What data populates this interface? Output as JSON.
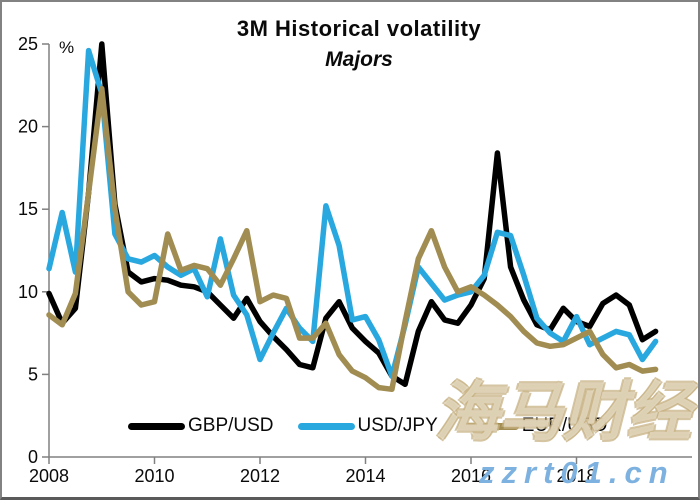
{
  "chart_data": {
    "type": "line",
    "title": "3M Historical volatility",
    "subtitle": "Majors",
    "unit_label": "%",
    "xlabel": "",
    "ylabel": "%",
    "xlim": [
      2008,
      2020.2
    ],
    "ylim": [
      0,
      25
    ],
    "grid": false,
    "legend_position": "bottom",
    "x_ticks": [
      2008,
      2010,
      2012,
      2014,
      2016,
      2018
    ],
    "y_ticks": [
      0,
      5,
      10,
      15,
      20,
      25
    ],
    "axis_color": "#808080",
    "x": [
      2008.0,
      2008.25,
      2008.5,
      2008.75,
      2009.0,
      2009.25,
      2009.5,
      2009.75,
      2010.0,
      2010.25,
      2010.5,
      2010.75,
      2011.0,
      2011.25,
      2011.5,
      2011.75,
      2012.0,
      2012.25,
      2012.5,
      2012.75,
      2013.0,
      2013.25,
      2013.5,
      2013.75,
      2014.0,
      2014.25,
      2014.5,
      2014.75,
      2015.0,
      2015.25,
      2015.5,
      2015.75,
      2016.0,
      2016.25,
      2016.5,
      2016.75,
      2017.0,
      2017.25,
      2017.5,
      2017.75,
      2018.0,
      2018.25,
      2018.5,
      2018.75,
      2019.0,
      2019.25,
      2019.5
    ],
    "series": [
      {
        "name": "GBP/USD",
        "color": "#000000",
        "values": [
          9.9,
          8.1,
          9.0,
          16.0,
          25.0,
          15.3,
          11.2,
          10.6,
          10.8,
          10.7,
          10.4,
          10.3,
          10.0,
          9.2,
          8.4,
          9.6,
          8.2,
          7.3,
          6.5,
          5.6,
          5.4,
          8.4,
          9.4,
          7.8,
          7.0,
          6.3,
          4.9,
          4.4,
          7.6,
          9.4,
          8.3,
          8.1,
          9.2,
          10.8,
          18.4,
          11.5,
          9.5,
          8.0,
          7.7,
          9.0,
          8.2,
          7.9,
          9.3,
          9.8,
          9.2,
          7.1,
          7.6
        ]
      },
      {
        "name": "USD/JPY",
        "color": "#29a8e0",
        "values": [
          11.4,
          14.8,
          11.2,
          24.6,
          22.0,
          13.5,
          12.0,
          11.8,
          12.2,
          11.5,
          11.0,
          11.4,
          9.7,
          13.2,
          9.8,
          8.6,
          5.9,
          7.5,
          9.0,
          7.8,
          7.0,
          15.2,
          12.8,
          8.3,
          8.5,
          7.1,
          4.9,
          8.0,
          11.5,
          10.5,
          9.5,
          9.8,
          10.0,
          11.0,
          13.6,
          13.4,
          11.0,
          8.4,
          7.5,
          7.0,
          8.5,
          6.8,
          7.2,
          7.6,
          7.4,
          5.9,
          7.0
        ]
      },
      {
        "name": "EUR/USD",
        "color": "#a18d52",
        "values": [
          8.6,
          8.0,
          9.9,
          16.0,
          22.3,
          15.0,
          10.0,
          9.2,
          9.4,
          13.5,
          11.3,
          11.6,
          11.4,
          10.4,
          12.0,
          13.7,
          9.4,
          9.8,
          9.6,
          7.2,
          7.2,
          8.1,
          6.2,
          5.2,
          4.8,
          4.2,
          4.1,
          8.2,
          12.0,
          13.7,
          11.5,
          10.0,
          10.3,
          9.8,
          9.2,
          8.5,
          7.6,
          6.9,
          6.7,
          6.8,
          7.2,
          7.6,
          6.2,
          5.4,
          5.6,
          5.2,
          5.3
        ]
      }
    ]
  },
  "watermark": {
    "line1": "海马财经",
    "line2": "zzrt01.cn"
  }
}
